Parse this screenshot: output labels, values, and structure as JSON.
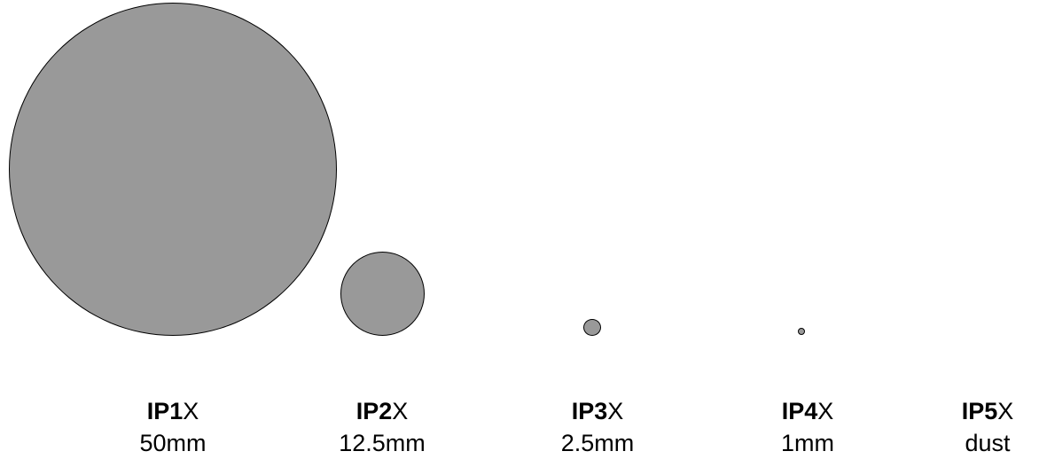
{
  "fill_color": "#999999",
  "stroke_color": "#000000",
  "ratings": [
    {
      "code": "IP1",
      "suffix": "X",
      "size": "50mm",
      "diameter_mm": 50
    },
    {
      "code": "IP2",
      "suffix": "X",
      "size": "12.5mm",
      "diameter_mm": 12.5
    },
    {
      "code": "IP3",
      "suffix": "X",
      "size": "2.5mm",
      "diameter_mm": 2.5
    },
    {
      "code": "IP4",
      "suffix": "X",
      "size": "1mm",
      "diameter_mm": 1
    },
    {
      "code": "IP5",
      "suffix": "X",
      "size": "dust"
    }
  ]
}
